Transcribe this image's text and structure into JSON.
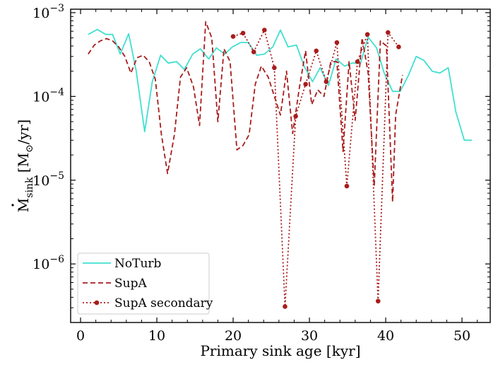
{
  "chart_data": {
    "type": "line",
    "xlabel": "Primary sink age [kyr]",
    "ylabel": "Ṁ_sink [M_⊙/yr]",
    "xlim": [
      -1.3,
      53.7
    ],
    "ylim": [
      2e-07,
      0.0011
    ],
    "yscale": "log",
    "x_ticks": [
      0,
      10,
      20,
      30,
      40,
      50
    ],
    "y_ticks": [
      {
        "value": 1e-06,
        "base": "10",
        "exp": "−6"
      },
      {
        "value": 1e-05,
        "base": "10",
        "exp": "−5"
      },
      {
        "value": 0.0001,
        "base": "10",
        "exp": "−4"
      },
      {
        "value": 0.001,
        "base": "10",
        "exp": "−3"
      }
    ],
    "legend_position": "lower left",
    "series": [
      {
        "name": "NoTurb",
        "color": "#40e0d0",
        "style": "solid",
        "marker": "none",
        "x": [
          1,
          2.2,
          3.3,
          4.2,
          5.2,
          6.3,
          7.3,
          8.4,
          9.4,
          10.5,
          11.5,
          12.6,
          13.6,
          14.7,
          15.7,
          16.8,
          17.8,
          18.9,
          19.9,
          21,
          22,
          23.1,
          24.1,
          25.2,
          26.2,
          27.2,
          28.3,
          29.3,
          30.4,
          31.4,
          32.5,
          33.5,
          34.6,
          35.6,
          36.7,
          37.7,
          38.8,
          39.8,
          40.9,
          41.9,
          43,
          44,
          45,
          46.1,
          47.1,
          48.2,
          49.2,
          50.3,
          51.3
        ],
        "y": [
          0.00055,
          0.00063,
          0.00055,
          0.00055,
          0.00032,
          0.00056,
          0.0002,
          3.8e-05,
          0.00015,
          0.00031,
          0.00025,
          0.00026,
          0.00021,
          0.00032,
          0.00037,
          0.00028,
          0.00038,
          0.00032,
          0.00039,
          0.00044,
          0.00044,
          0.00031,
          0.00032,
          0.00039,
          0.00062,
          0.00039,
          0.00041,
          0.00023,
          0.00015,
          0.00022,
          0.000135,
          0.00028,
          0.00023,
          0.00025,
          0.00025,
          0.00051,
          0.00038,
          0.00019,
          0.000115,
          0.000115,
          0.00018,
          0.0003,
          0.00027,
          0.0002,
          0.00019,
          0.00022,
          6.5e-05,
          3e-05,
          3e-05
        ]
      },
      {
        "name": "SupA",
        "color": "#a81c1c",
        "style": "dashed",
        "marker": "none",
        "x": [
          1,
          1.8,
          2.6,
          3.4,
          4.2,
          5,
          5.8,
          6.6,
          7.4,
          8.2,
          9,
          9.8,
          10.6,
          11.4,
          12.3,
          13.1,
          13.9,
          14.8,
          15.6,
          16.4,
          17.2,
          18,
          18.8,
          19.6,
          20.5,
          21.3,
          22.1,
          22.9,
          23.7,
          24.6,
          25.4,
          26.2,
          27,
          27.8,
          28.7,
          29.5,
          30.3,
          31.1,
          31.9,
          32.8,
          33.6,
          34.4,
          35.2,
          36,
          36.9,
          37.7,
          38.5,
          39.3,
          40.1,
          40.9,
          41.3,
          42.2
        ],
        "y": [
          0.00032,
          0.00041,
          0.00046,
          0.00049,
          0.00046,
          0.00039,
          0.0003,
          0.00019,
          0.00029,
          0.00031,
          0.00026,
          0.00016,
          3.5e-05,
          1.2e-05,
          3.5e-05,
          0.00017,
          0.00022,
          0.00013,
          4.5e-05,
          0.00078,
          0.0005,
          5e-05,
          0.00037,
          0.00026,
          2.3e-05,
          2.6e-05,
          3.5e-05,
          0.00014,
          0.00023,
          0.00017,
          0.0001,
          6e-05,
          0.0002,
          3.6e-05,
          0.00013,
          0.00035,
          8e-05,
          0.00012,
          0.0001,
          0.00026,
          0.00026,
          2.2e-05,
          0.00026,
          5.2e-05,
          0.0005,
          0.00019,
          8.5e-06,
          0.00046,
          0.0004,
          5.5e-06,
          6e-05,
          0.00018
        ]
      },
      {
        "name": "SupA secondary",
        "color": "#a81c1c",
        "style": "dotted",
        "marker": "circle",
        "x": [
          20,
          21.3,
          22.7,
          24.1,
          25.4,
          26.8,
          28.2,
          29.5,
          30.9,
          32.2,
          33.6,
          34.9,
          36.3,
          37.6,
          39,
          40.3,
          41.7
        ],
        "y": [
          0.00052,
          0.00057,
          0.00034,
          0.00062,
          0.00022,
          3.1e-07,
          5.8e-05,
          0.00014,
          0.00035,
          0.00015,
          0.00044,
          8.5e-06,
          0.00026,
          0.00055,
          3.6e-07,
          0.00058,
          0.00039
        ]
      }
    ]
  }
}
